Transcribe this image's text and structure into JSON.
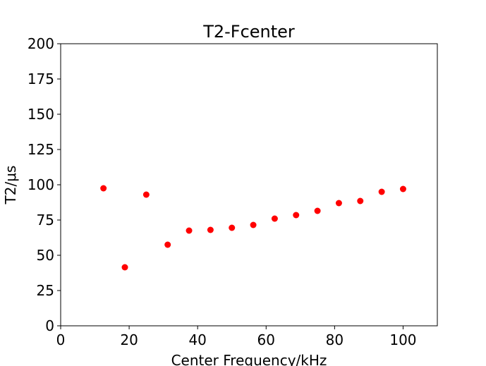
{
  "chart_data": {
    "type": "scatter",
    "title": "T2-Fcenter",
    "xlabel": "Center Frequency/kHz",
    "ylabel": "T2/μs",
    "xlim": [
      0,
      110
    ],
    "ylim": [
      0,
      200
    ],
    "xticks": [
      0,
      20,
      40,
      60,
      80,
      100
    ],
    "xtick_labels": [
      "0",
      "20",
      "40",
      "60",
      "80",
      "100"
    ],
    "yticks": [
      0,
      25,
      50,
      75,
      100,
      125,
      150,
      175,
      200
    ],
    "ytick_labels": [
      "0",
      "25",
      "50",
      "75",
      "100",
      "125",
      "150",
      "175",
      "200"
    ],
    "grid": false,
    "series": [
      {
        "name": "T2",
        "color": "#ff0000",
        "x": [
          12.5,
          18.75,
          25,
          31.25,
          37.5,
          43.75,
          50,
          56.25,
          62.5,
          68.75,
          75,
          81.25,
          87.5,
          93.75,
          100
        ],
        "y": [
          97.5,
          41.5,
          93,
          57.5,
          67.5,
          68,
          69.5,
          71.5,
          76,
          78.5,
          81.5,
          87,
          88.5,
          95,
          97
        ]
      }
    ]
  }
}
